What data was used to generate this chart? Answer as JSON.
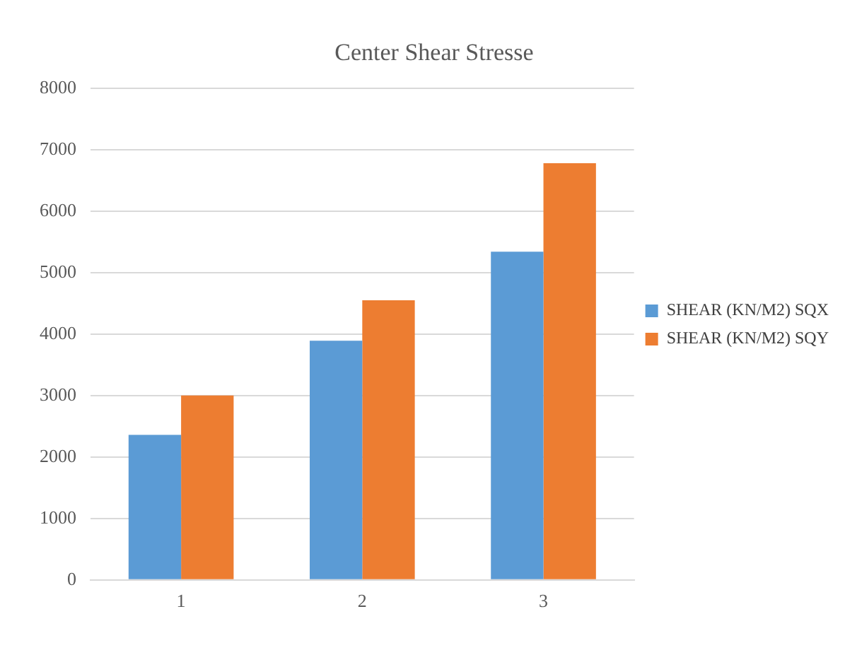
{
  "chart_data": {
    "type": "bar",
    "title": "Center Shear Stresse",
    "categories": [
      "1",
      "2",
      "3"
    ],
    "series": [
      {
        "name": "SHEAR (KN/M2) SQX",
        "color": "#5b9bd5",
        "values": [
          2360,
          3890,
          5340
        ]
      },
      {
        "name": "SHEAR (KN/M2) SQY",
        "color": "#ed7d31",
        "values": [
          3000,
          4550,
          6780
        ]
      }
    ],
    "ylim": [
      0,
      8000
    ],
    "yticks": [
      0,
      1000,
      2000,
      3000,
      4000,
      5000,
      6000,
      7000,
      8000
    ],
    "grid": "y",
    "legend": "right"
  }
}
